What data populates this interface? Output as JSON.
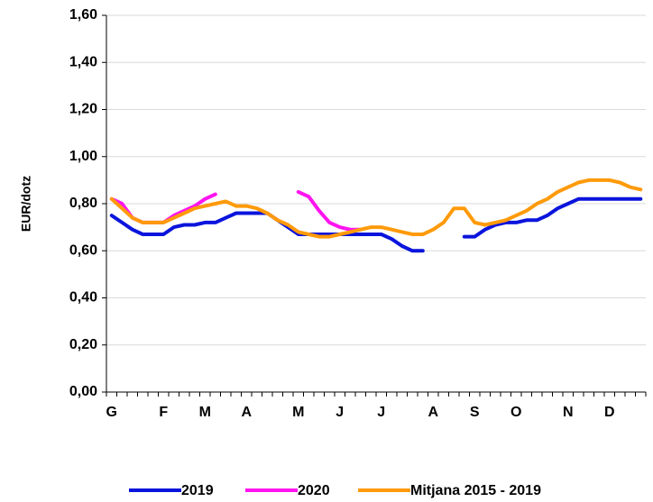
{
  "chart_data": {
    "type": "line",
    "y_label": "EUR/dotz",
    "categories": [
      "G",
      null,
      null,
      null,
      null,
      "F",
      null,
      null,
      null,
      "M",
      null,
      null,
      null,
      "A",
      null,
      null,
      null,
      null,
      "M",
      null,
      null,
      null,
      "J",
      null,
      null,
      null,
      "J",
      null,
      null,
      null,
      null,
      "A",
      null,
      null,
      null,
      "S",
      null,
      null,
      null,
      "O",
      null,
      null,
      null,
      null,
      "N",
      null,
      null,
      null,
      "D",
      null,
      null,
      null
    ],
    "series": [
      {
        "name": "2019",
        "color": "#0a14dc",
        "values": [
          0.75,
          0.72,
          0.69,
          0.67,
          0.67,
          0.67,
          0.7,
          0.71,
          0.71,
          0.72,
          0.72,
          0.74,
          0.76,
          0.76,
          0.76,
          0.76,
          0.73,
          0.7,
          0.67,
          0.67,
          0.67,
          0.67,
          0.67,
          0.67,
          0.67,
          0.67,
          0.67,
          0.65,
          0.62,
          0.6,
          0.6,
          null,
          null,
          null,
          0.66,
          0.66,
          0.69,
          0.71,
          0.72,
          0.72,
          0.73,
          0.73,
          0.75,
          0.78,
          0.8,
          0.82,
          0.82,
          0.82,
          0.82,
          0.82,
          0.82,
          0.82
        ]
      },
      {
        "name": "2020",
        "color": "#ff14f0",
        "values": [
          0.82,
          0.8,
          0.74,
          0.72,
          0.72,
          0.72,
          0.75,
          0.77,
          0.79,
          0.82,
          0.84,
          null,
          null,
          null,
          null,
          null,
          null,
          null,
          0.85,
          0.83,
          0.77,
          0.72,
          0.7,
          0.69,
          0.69,
          null,
          null,
          null,
          null,
          null,
          null,
          null,
          null,
          null,
          null,
          null,
          null,
          null,
          null,
          null,
          null,
          null,
          null,
          null,
          null,
          null,
          null,
          null,
          null,
          null,
          null,
          null
        ]
      },
      {
        "name": "Mitjana 2015 - 2019",
        "color": "#ff9a0a",
        "values": [
          0.82,
          0.78,
          0.74,
          0.72,
          0.72,
          0.72,
          0.74,
          0.76,
          0.78,
          0.79,
          0.8,
          0.81,
          0.79,
          0.79,
          0.78,
          0.76,
          0.73,
          0.71,
          0.68,
          0.67,
          0.66,
          0.66,
          0.67,
          0.68,
          0.69,
          0.7,
          0.7,
          0.69,
          0.68,
          0.67,
          0.67,
          0.69,
          0.72,
          0.78,
          0.78,
          0.72,
          0.71,
          0.72,
          0.73,
          0.75,
          0.77,
          0.8,
          0.82,
          0.85,
          0.87,
          0.89,
          0.9,
          0.9,
          0.9,
          0.89,
          0.87,
          0.86
        ]
      }
    ],
    "ylim": [
      0,
      1.6
    ],
    "yticks": [
      {
        "value": 0,
        "label": "0,00"
      },
      {
        "value": 0.2,
        "label": "0,20"
      },
      {
        "value": 0.4,
        "label": "0,40"
      },
      {
        "value": 0.6,
        "label": "0,60"
      },
      {
        "value": 0.8,
        "label": "0,80"
      },
      {
        "value": 1.0,
        "label": "1,00"
      },
      {
        "value": 1.2,
        "label": "1,20"
      },
      {
        "value": 1.4,
        "label": "1,40"
      },
      {
        "value": 1.6,
        "label": "1,60"
      }
    ],
    "grid": true,
    "legend": "bottom"
  }
}
